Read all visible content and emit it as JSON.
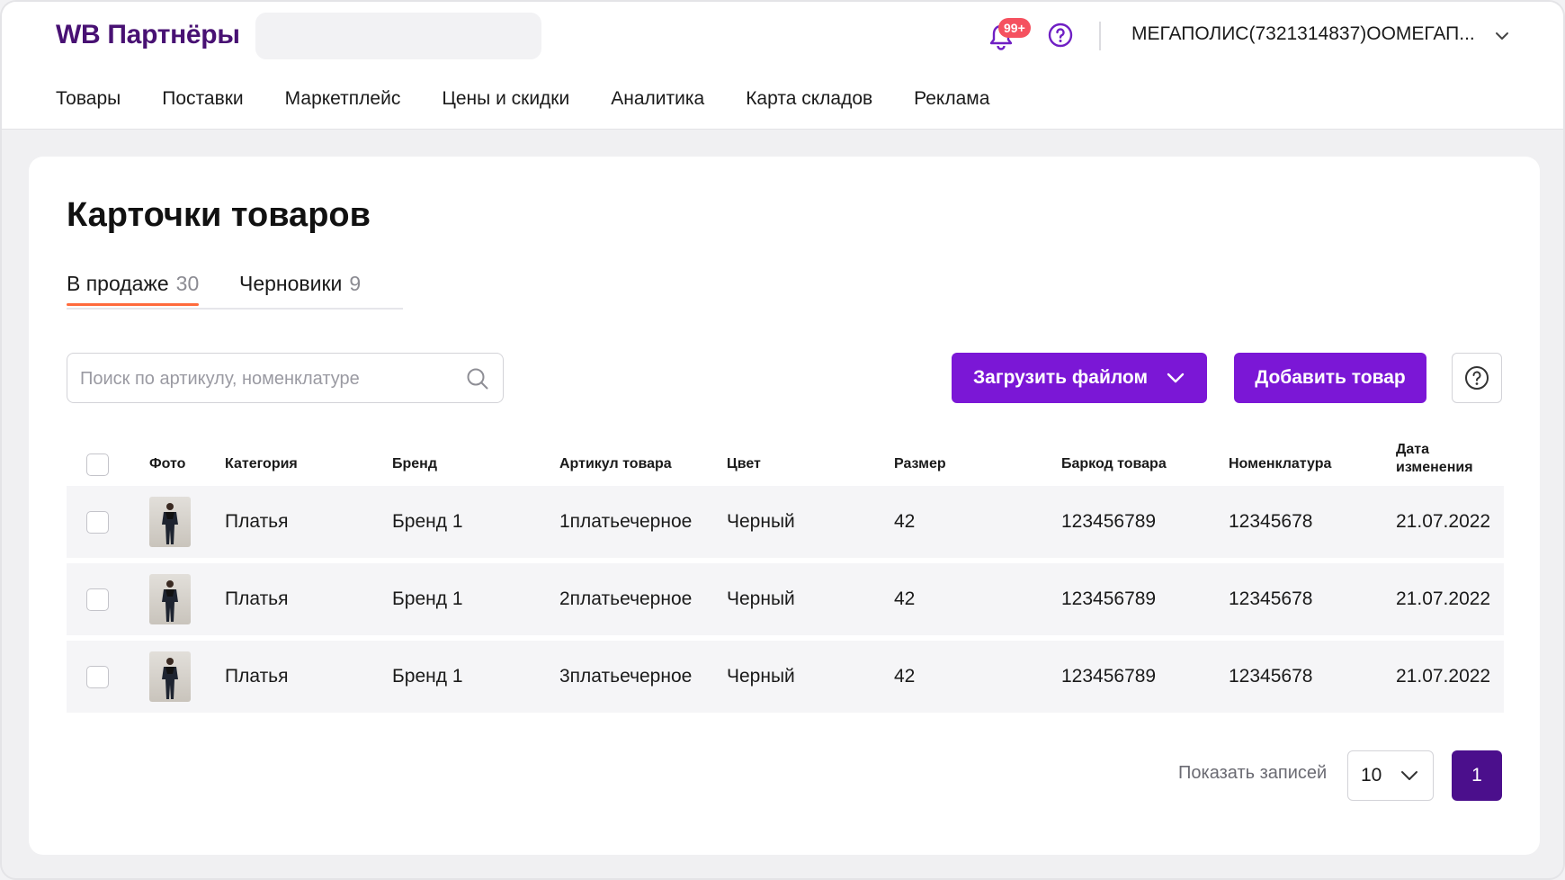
{
  "header": {
    "logo": "WB Партнёры",
    "notifications_badge": "99+",
    "account": "МЕГАПОЛИС(7321314837)ООМЕГАП..."
  },
  "nav": [
    "Товары",
    "Поставки",
    "Маркетплейс",
    "Цены и скидки",
    "Аналитика",
    "Карта складов",
    "Реклама"
  ],
  "page": {
    "title": "Карточки товаров",
    "tabs": [
      {
        "label": "В продаже",
        "count": "30",
        "active": true
      },
      {
        "label": "Черновики",
        "count": "9",
        "active": false
      }
    ],
    "search_placeholder": "Поиск по артикулу, номенклатуре",
    "upload_button": "Загрузить файлом",
    "add_button": "Добавить товар"
  },
  "table": {
    "columns": [
      "Фото",
      "Категория",
      "Бренд",
      "Артикул товара",
      "Цвет",
      "Размер",
      "Баркод товара",
      "Номенклатура",
      "Дата изменения"
    ],
    "rows": [
      {
        "category": "Платья",
        "brand": "Бренд 1",
        "article": "1платьечерное",
        "color": "Черный",
        "size": "42",
        "barcode": "123456789",
        "nomenclature": "12345678",
        "date": "21.07.2022"
      },
      {
        "category": "Платья",
        "brand": "Бренд 1",
        "article": "2платьечерное",
        "color": "Черный",
        "size": "42",
        "barcode": "123456789",
        "nomenclature": "12345678",
        "date": "21.07.2022"
      },
      {
        "category": "Платья",
        "brand": "Бренд 1",
        "article": "3платьечерное",
        "color": "Черный",
        "size": "42",
        "barcode": "123456789",
        "nomenclature": "12345678",
        "date": "21.07.2022"
      }
    ]
  },
  "pagination": {
    "label": "Показать записей",
    "page_size": "10",
    "current_page": "1"
  },
  "colors": {
    "brand": "#481173",
    "primary": "#7b17d6",
    "active_page": "#4b0f8c",
    "tab_underline": "#ff6b3d",
    "badge": "#f5515f"
  },
  "icons": {
    "bell": "bell-icon",
    "help": "help-icon",
    "chevron": "chevron-down-icon",
    "search": "search-icon"
  }
}
